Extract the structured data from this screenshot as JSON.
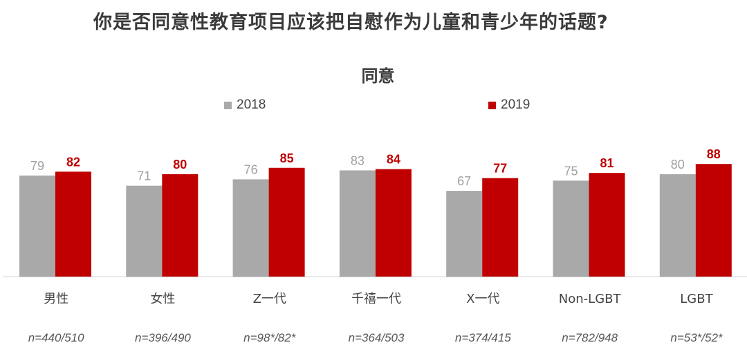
{
  "title": "你是否同意性教育项目应该把自慰作为儿童和青少年的话题?",
  "colors": {
    "series_2018": "#a9a9a9",
    "series_2019": "#c00000"
  },
  "chart_data": {
    "type": "bar",
    "title": "同意",
    "legend_position": "top",
    "categories": [
      "男性",
      "女性",
      "Z一代",
      "千禧一代",
      "X一代",
      "Non-LGBT",
      "LGBT"
    ],
    "sample_sizes": [
      "n=440/510",
      "n=396/490",
      "n=98*/82*",
      "n=364/503",
      "n=374/415",
      "n=782/948",
      "n=53*/52*"
    ],
    "series": [
      {
        "name": "2018",
        "values": [
          79,
          71,
          76,
          83,
          67,
          75,
          80
        ]
      },
      {
        "name": "2019",
        "values": [
          82,
          80,
          85,
          84,
          77,
          81,
          88
        ]
      }
    ]
  }
}
